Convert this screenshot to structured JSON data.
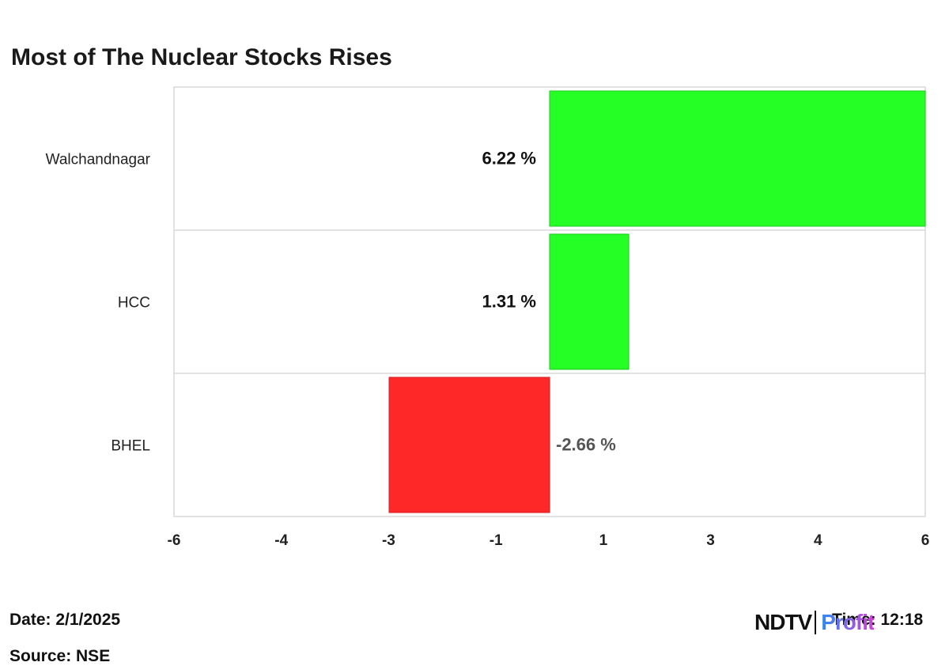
{
  "chart_data": {
    "type": "bar",
    "orientation": "horizontal",
    "title": "Most of The Nuclear Stocks Rises",
    "categories": [
      "Walchandnagar",
      "HCC",
      "BHEL"
    ],
    "values": [
      6.22,
      1.31,
      -2.66
    ],
    "data_labels": [
      "6.22 %",
      "1.31 %",
      "-2.66 %"
    ],
    "xlim": [
      -6,
      6
    ],
    "x_ticks": [
      "-6",
      "-4",
      "-3",
      "-1",
      "1",
      "3",
      "4",
      "6"
    ],
    "positive_color": "#26ff26",
    "negative_color": "#ff2828",
    "grid": "horizontal separators"
  },
  "footer": {
    "date": "Date: 2/1/2025",
    "source": "Source: NSE",
    "time": "Time: 12:18"
  },
  "logo": {
    "ndtv": "NDTV",
    "profit": "Profit"
  }
}
